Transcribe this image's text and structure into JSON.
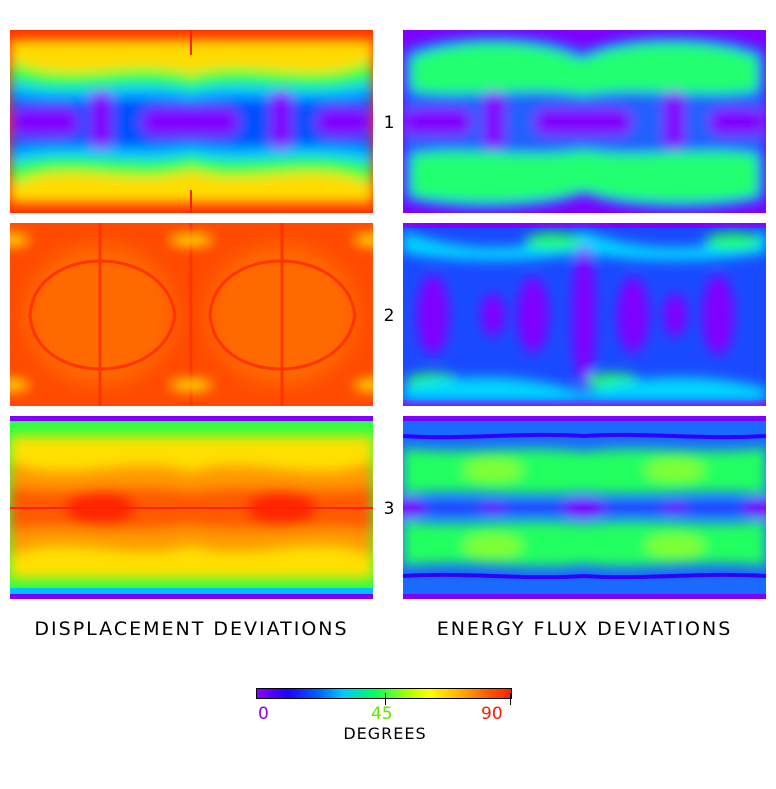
{
  "rows": [
    {
      "label": "1"
    },
    {
      "label": "2"
    },
    {
      "label": "3"
    }
  ],
  "columns": [
    {
      "title": "DISPLACEMENT DEVIATIONS"
    },
    {
      "title": "ENERGY FLUX DEVIATIONS"
    }
  ],
  "colorbar": {
    "unit": "DEGREES",
    "ticks": [
      {
        "label": "0",
        "value": 0,
        "color": "#8a00ff"
      },
      {
        "label": "45",
        "value": 45,
        "color": "#66e600"
      },
      {
        "label": "90",
        "value": 90,
        "color": "#ff1a00"
      }
    ],
    "range": [
      0,
      90
    ]
  }
}
